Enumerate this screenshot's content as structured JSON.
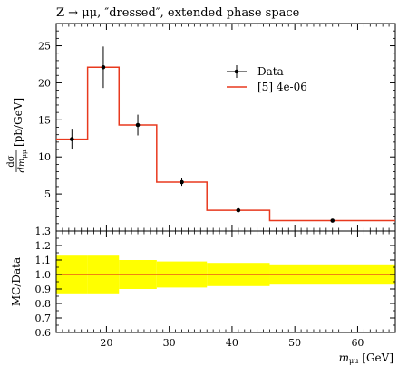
{
  "title": "Z → μμ, ″dressed″, extended phase space",
  "main_panel": {
    "ylabel_left": "dσ",
    "ylabel_left_den": "dm",
    "ylabel_left_den_sub": "μμ",
    "ylabel_right": "[pb/GeV]",
    "legend": [
      {
        "label": "Data",
        "marker": "point-with-errorbar",
        "color": "#000000"
      },
      {
        "label": "[5] 4e-06",
        "marker": "line",
        "color": "#e8391e"
      }
    ]
  },
  "ratio_panel": {
    "ylabel": "MC/Data",
    "band_color": "#ffff00",
    "line_color": "#e8391e"
  },
  "xaxis": {
    "label_var": "m",
    "label_sub": "μμ",
    "label_unit": "[GeV]"
  },
  "chart_data": {
    "type": "line",
    "title": "Z → μμ, ″dressed″, extended phase space",
    "xlabel": "m_μμ [GeV]",
    "ylabel": "dσ/dm_μμ [pb/GeV]",
    "xlim": [
      12,
      66
    ],
    "ylim": [
      0,
      28
    ],
    "ratio_ylim": [
      0.6,
      1.3
    ],
    "x_ticks": [
      20,
      30,
      40,
      50,
      60
    ],
    "x_tick_labels": [
      "20",
      "30",
      "40",
      "50",
      "60"
    ],
    "y_ticks": [
      5,
      10,
      15,
      20,
      25
    ],
    "y_tick_labels": [
      "5",
      "10",
      "15",
      "20",
      "25"
    ],
    "ratio_ticks": [
      0.6,
      0.7,
      0.8,
      0.9,
      1.0,
      1.1,
      1.2,
      1.3
    ],
    "ratio_tick_labels": [
      "0.6",
      "0.7",
      "0.8",
      "0.9",
      "1.0",
      "1.1",
      "1.2",
      "1.3"
    ],
    "bin_edges": [
      12,
      17,
      22,
      28,
      36,
      46,
      66
    ],
    "series": [
      {
        "name": "Data",
        "style": "points",
        "x": [
          14.5,
          19.5,
          25,
          32,
          41,
          56
        ],
        "y": [
          12.4,
          22.1,
          14.3,
          6.6,
          2.8,
          1.4
        ],
        "yerr": [
          1.4,
          2.8,
          1.4,
          0.5,
          0.2,
          0.1
        ]
      },
      {
        "name": "[5] 4e-06",
        "style": "histogram",
        "y": [
          12.4,
          22.1,
          14.3,
          6.6,
          2.8,
          1.4
        ]
      }
    ],
    "ratio": {
      "mc_over_data": [
        1.0,
        1.0,
        1.0,
        1.0,
        1.0,
        1.0
      ],
      "band_low": [
        0.87,
        0.87,
        0.9,
        0.91,
        0.92,
        0.93
      ],
      "band_high": [
        1.13,
        1.13,
        1.1,
        1.09,
        1.08,
        1.07
      ]
    }
  }
}
